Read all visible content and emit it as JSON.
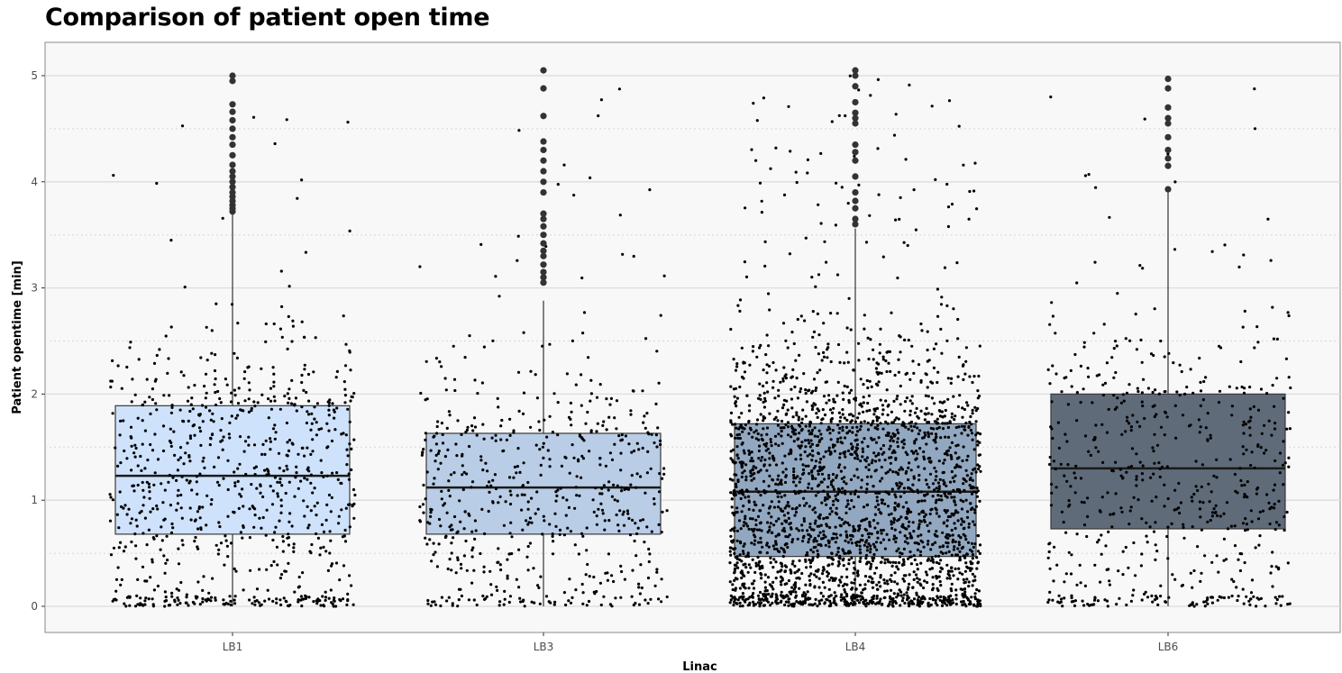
{
  "chart_data": {
    "type": "boxplot",
    "title": "Comparison of patient open time",
    "xlabel": "Linac",
    "ylabel": "Patient opentime [min]",
    "categories": [
      "LB1",
      "LB3",
      "LB4",
      "LB6"
    ],
    "ylim": [
      -0.25,
      5.3
    ],
    "yticks": [
      0,
      1,
      2,
      3,
      4,
      5
    ],
    "grid": true,
    "boxes": [
      {
        "name": "LB1",
        "q1": 0.68,
        "median": 1.23,
        "q3": 1.89,
        "whisker_low": 0.0,
        "whisker_high": 3.7,
        "color": "#cfe2fb",
        "n_points": 820
      },
      {
        "name": "LB3",
        "q1": 0.68,
        "median": 1.12,
        "q3": 1.63,
        "whisker_low": 0.0,
        "whisker_high": 2.88,
        "color": "#b9cde6",
        "n_points": 600
      },
      {
        "name": "LB4",
        "q1": 0.47,
        "median": 1.08,
        "q3": 1.72,
        "whisker_low": 0.0,
        "whisker_high": 3.56,
        "color": "#92a8c1",
        "n_points": 2600
      },
      {
        "name": "LB6",
        "q1": 0.73,
        "median": 1.3,
        "q3": 2.0,
        "whisker_low": 0.0,
        "whisker_high": 3.96,
        "color": "#5f6b79",
        "n_points": 600
      }
    ],
    "outliers": [
      [
        3.72,
        3.75,
        3.78,
        3.82,
        3.86,
        3.9,
        3.95,
        4.0,
        4.05,
        4.1,
        4.16,
        4.25,
        4.35,
        4.42,
        4.5,
        4.58,
        4.66,
        4.73,
        4.95,
        5.0
      ],
      [
        3.05,
        3.1,
        3.15,
        3.22,
        3.3,
        3.35,
        3.42,
        3.5,
        3.58,
        3.65,
        3.7,
        3.9,
        4.0,
        4.1,
        4.2,
        4.3,
        4.38,
        4.62,
        4.88,
        5.05
      ],
      [
        3.6,
        3.65,
        3.75,
        3.82,
        3.9,
        4.05,
        4.2,
        4.28,
        4.35,
        4.55,
        4.6,
        4.65,
        4.75,
        4.9,
        5.0,
        5.05
      ],
      [
        3.93,
        4.15,
        4.22,
        4.3,
        4.42,
        4.55,
        4.6,
        4.7,
        4.88,
        4.97
      ]
    ]
  }
}
